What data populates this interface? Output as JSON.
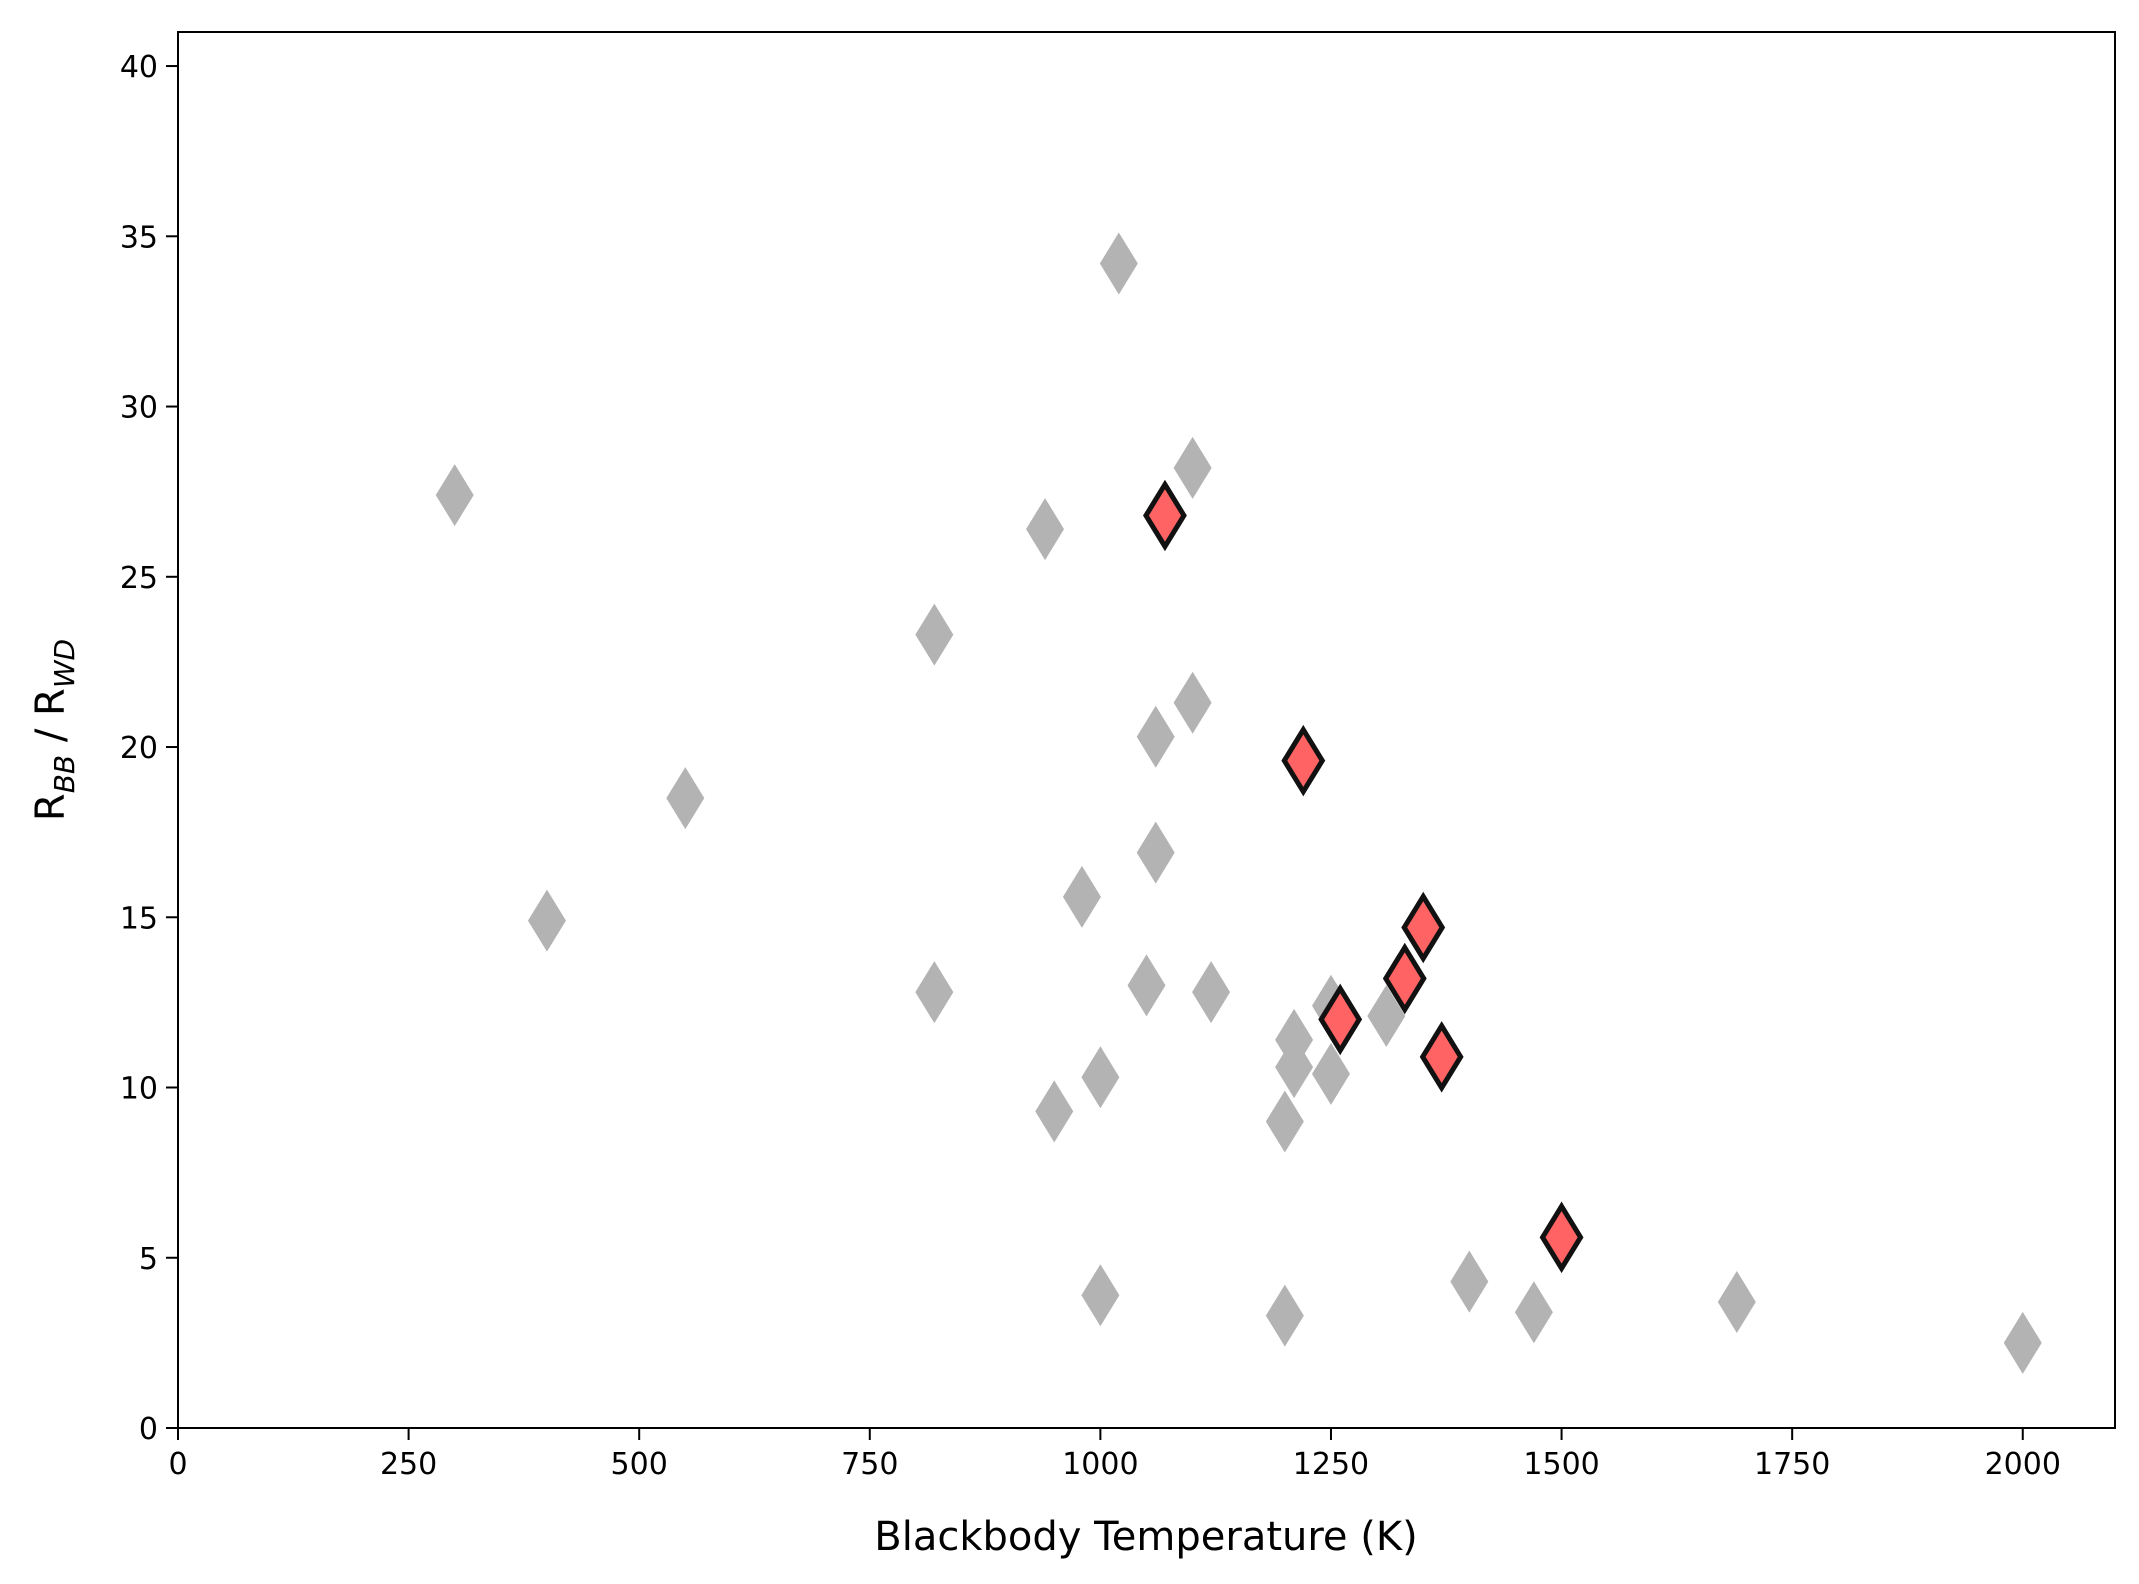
{
  "chart_data": {
    "type": "scatter",
    "title": "",
    "xlabel": "Blackbody Temperature (K)",
    "ylabel": {
      "main": "R",
      "sub1": "BB",
      "sep": " / R",
      "sub2": "WD"
    },
    "xlim": [
      0,
      2100
    ],
    "ylim": [
      0,
      41
    ],
    "x_ticks": [
      0,
      250,
      500,
      750,
      1000,
      1250,
      1500,
      1750,
      2000
    ],
    "y_ticks": [
      0,
      5,
      10,
      15,
      20,
      25,
      30,
      35,
      40
    ],
    "grid": false,
    "legend": "none",
    "marker": "diamond",
    "series": [
      {
        "color": "#b3b3b3",
        "edge_color": "none",
        "points": [
          {
            "x": 300,
            "y": 27.4
          },
          {
            "x": 400,
            "y": 14.9
          },
          {
            "x": 550,
            "y": 18.5
          },
          {
            "x": 820,
            "y": 23.3
          },
          {
            "x": 820,
            "y": 12.8
          },
          {
            "x": 940,
            "y": 26.4
          },
          {
            "x": 950,
            "y": 9.3
          },
          {
            "x": 980,
            "y": 15.6
          },
          {
            "x": 1000,
            "y": 10.3
          },
          {
            "x": 1000,
            "y": 3.9
          },
          {
            "x": 1020,
            "y": 34.2
          },
          {
            "x": 1050,
            "y": 13.0
          },
          {
            "x": 1060,
            "y": 20.3
          },
          {
            "x": 1060,
            "y": 16.9
          },
          {
            "x": 1100,
            "y": 28.2
          },
          {
            "x": 1100,
            "y": 21.3
          },
          {
            "x": 1120,
            "y": 12.8
          },
          {
            "x": 1200,
            "y": 9.0
          },
          {
            "x": 1200,
            "y": 3.3
          },
          {
            "x": 1210,
            "y": 11.4
          },
          {
            "x": 1210,
            "y": 10.6
          },
          {
            "x": 1250,
            "y": 12.4
          },
          {
            "x": 1250,
            "y": 10.4
          },
          {
            "x": 1310,
            "y": 12.1
          },
          {
            "x": 1400,
            "y": 4.3
          },
          {
            "x": 1470,
            "y": 3.4
          },
          {
            "x": 1690,
            "y": 3.7
          },
          {
            "x": 2000,
            "y": 2.5
          }
        ]
      },
      {
        "color": "#ff6363",
        "edge_color": "#111111",
        "points": [
          {
            "x": 1070,
            "y": 26.8
          },
          {
            "x": 1220,
            "y": 19.6
          },
          {
            "x": 1260,
            "y": 12.0
          },
          {
            "x": 1330,
            "y": 13.2
          },
          {
            "x": 1350,
            "y": 14.7
          },
          {
            "x": 1370,
            "y": 10.9
          },
          {
            "x": 1500,
            "y": 5.6
          }
        ]
      }
    ]
  }
}
